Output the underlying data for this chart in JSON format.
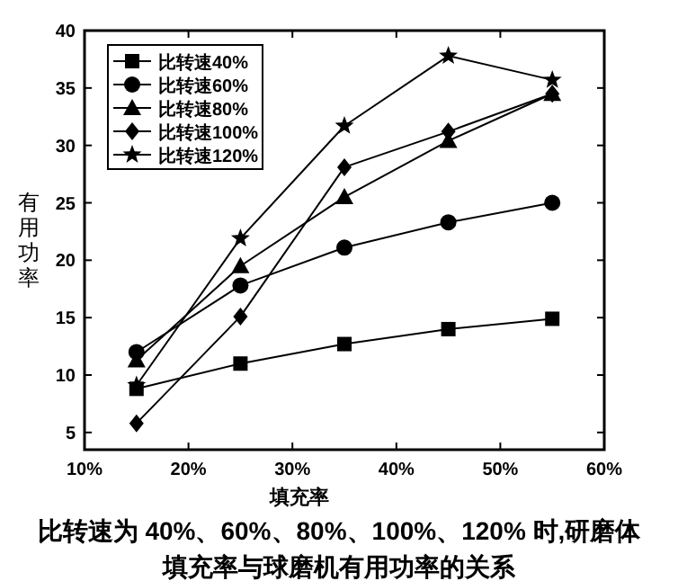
{
  "chart_data": {
    "type": "line",
    "xlabel": "填充率",
    "ylabel": "有用功率",
    "annotations": [
      "比转速为 40%、60%、80%、100%、120% 时,研磨体",
      "填充率与球磨机有用功率的关系"
    ],
    "x": [
      15,
      25,
      35,
      45,
      55
    ],
    "xlim": [
      10,
      60
    ],
    "xticks": [
      {
        "value": 10,
        "label": "10%"
      },
      {
        "value": 20,
        "label": "20%"
      },
      {
        "value": 30,
        "label": "30%"
      },
      {
        "value": 40,
        "label": "40%"
      },
      {
        "value": 50,
        "label": "50%"
      },
      {
        "value": 60,
        "label": "60%"
      }
    ],
    "ylim": [
      3.5,
      40
    ],
    "yticks": [
      5,
      10,
      15,
      20,
      25,
      30,
      35,
      40
    ],
    "grid": false,
    "legend": "top left",
    "line_style": "solid",
    "series": [
      {
        "name": "比转速40%",
        "color": "#000000",
        "marker": "square",
        "values": [
          8.8,
          11.0,
          12.7,
          14.0,
          14.9
        ]
      },
      {
        "name": "比转速60%",
        "color": "#000000",
        "marker": "circle",
        "values": [
          12.0,
          17.8,
          21.1,
          23.3,
          25.0
        ]
      },
      {
        "name": "比转速80%",
        "color": "#000000",
        "marker": "triangle",
        "values": [
          11.3,
          19.5,
          25.5,
          30.4,
          34.5
        ]
      },
      {
        "name": "比转速100%",
        "color": "#000000",
        "marker": "diamond",
        "values": [
          5.8,
          15.1,
          28.1,
          31.2,
          34.5
        ]
      },
      {
        "name": "比转速120%",
        "color": "#000000",
        "marker": "star",
        "values": [
          9.1,
          21.9,
          31.7,
          37.8,
          35.7
        ]
      }
    ]
  }
}
